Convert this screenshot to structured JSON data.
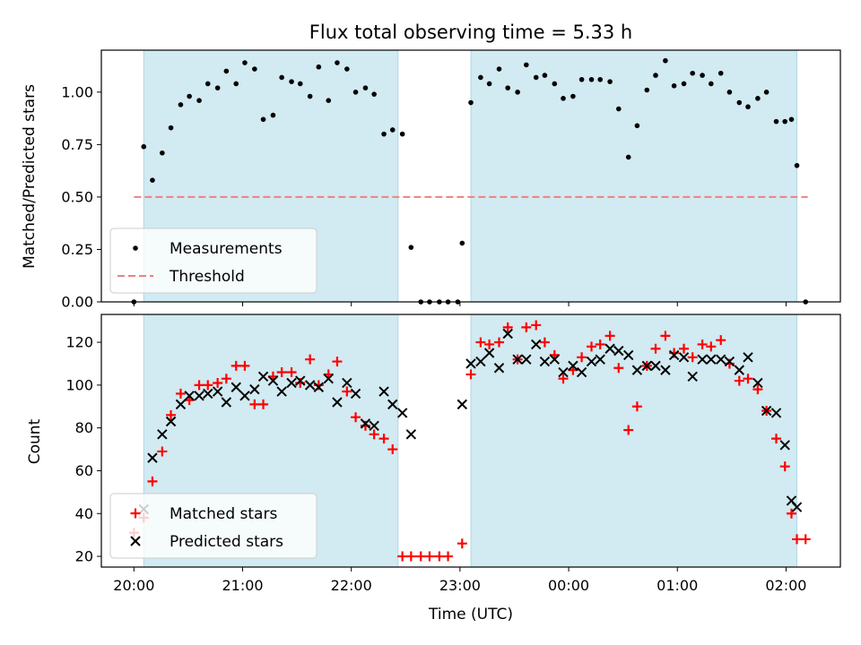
{
  "chart_data": {
    "title": "Flux total observing time = 5.33 h",
    "xlabel": "Time (UTC)",
    "x_unit": "hours UTC on a continuous clock (24 = 00:00 of the next day)",
    "xlim": [
      19.7,
      26.5
    ],
    "xticks": [
      {
        "value": 20,
        "label": "20:00"
      },
      {
        "value": 21,
        "label": "21:00"
      },
      {
        "value": 22,
        "label": "22:00"
      },
      {
        "value": 23,
        "label": "23:00"
      },
      {
        "value": 24,
        "label": "00:00"
      },
      {
        "value": 25,
        "label": "01:00"
      },
      {
        "value": 26,
        "label": "02:00"
      }
    ],
    "shaded_intervals": [
      [
        20.09,
        22.43
      ],
      [
        23.1,
        26.1
      ]
    ],
    "shade_color": "#add8e6",
    "panels": [
      {
        "type": "scatter",
        "ylabel": "Matched/Predicted stars",
        "ylim": [
          0,
          1.2
        ],
        "yticks": [
          "0.00",
          "0.25",
          "0.50",
          "0.75",
          "1.00"
        ],
        "ytick_values": [
          0,
          0.25,
          0.5,
          0.75,
          1.0
        ],
        "legend": {
          "placement": "lower-left",
          "entries": [
            "Measurements",
            "Threshold"
          ]
        },
        "series": [
          {
            "name": "Measurements",
            "marker": "dot",
            "color": "#000000",
            "points": [
              [
                20.0,
                0.0
              ],
              [
                20.09,
                0.74
              ],
              [
                20.17,
                0.58
              ],
              [
                20.26,
                0.71
              ],
              [
                20.34,
                0.83
              ],
              [
                20.43,
                0.94
              ],
              [
                20.51,
                0.98
              ],
              [
                20.6,
                0.96
              ],
              [
                20.68,
                1.04
              ],
              [
                20.77,
                1.02
              ],
              [
                20.85,
                1.1
              ],
              [
                20.94,
                1.04
              ],
              [
                21.02,
                1.14
              ],
              [
                21.11,
                1.11
              ],
              [
                21.19,
                0.87
              ],
              [
                21.28,
                0.89
              ],
              [
                21.36,
                1.07
              ],
              [
                21.45,
                1.05
              ],
              [
                21.53,
                1.04
              ],
              [
                21.62,
                0.98
              ],
              [
                21.7,
                1.12
              ],
              [
                21.79,
                0.96
              ],
              [
                21.87,
                1.14
              ],
              [
                21.96,
                1.11
              ],
              [
                22.04,
                1.0
              ],
              [
                22.13,
                1.02
              ],
              [
                22.21,
                0.99
              ],
              [
                22.3,
                0.8
              ],
              [
                22.38,
                0.82
              ],
              [
                22.47,
                0.8
              ],
              [
                22.55,
                0.26
              ],
              [
                22.64,
                0.0
              ],
              [
                22.72,
                0.0
              ],
              [
                22.81,
                0.0
              ],
              [
                22.89,
                0.0
              ],
              [
                22.98,
                0.0
              ],
              [
                23.02,
                0.28
              ],
              [
                23.1,
                0.95
              ],
              [
                23.19,
                1.07
              ],
              [
                23.27,
                1.04
              ],
              [
                23.36,
                1.11
              ],
              [
                23.44,
                1.02
              ],
              [
                23.53,
                1.0
              ],
              [
                23.61,
                1.13
              ],
              [
                23.7,
                1.07
              ],
              [
                23.78,
                1.08
              ],
              [
                23.87,
                1.04
              ],
              [
                23.95,
                0.97
              ],
              [
                24.04,
                0.98
              ],
              [
                24.12,
                1.06
              ],
              [
                24.21,
                1.06
              ],
              [
                24.29,
                1.06
              ],
              [
                24.38,
                1.05
              ],
              [
                24.46,
                0.92
              ],
              [
                24.55,
                0.69
              ],
              [
                24.63,
                0.84
              ],
              [
                24.72,
                1.01
              ],
              [
                24.8,
                1.08
              ],
              [
                24.89,
                1.15
              ],
              [
                24.97,
                1.03
              ],
              [
                25.06,
                1.04
              ],
              [
                25.14,
                1.09
              ],
              [
                25.23,
                1.08
              ],
              [
                25.31,
                1.04
              ],
              [
                25.4,
                1.09
              ],
              [
                25.48,
                1.0
              ],
              [
                25.57,
                0.95
              ],
              [
                25.65,
                0.93
              ],
              [
                25.74,
                0.97
              ],
              [
                25.82,
                1.0
              ],
              [
                25.91,
                0.86
              ],
              [
                25.99,
                0.86
              ],
              [
                26.05,
                0.87
              ],
              [
                26.1,
                0.65
              ],
              [
                26.18,
                0.0
              ]
            ]
          },
          {
            "name": "Threshold",
            "marker": "dashed-line",
            "color": "#f08080",
            "points": [
              [
                20.0,
                0.5
              ],
              [
                26.2,
                0.5
              ]
            ]
          }
        ]
      },
      {
        "type": "scatter",
        "ylabel": "Count",
        "ylim": [
          15,
          133
        ],
        "yticks": [
          "20",
          "40",
          "60",
          "80",
          "100",
          "120"
        ],
        "ytick_values": [
          20,
          40,
          60,
          80,
          100,
          120
        ],
        "legend": {
          "placement": "lower-left",
          "entries": [
            "Matched stars",
            "Predicted stars"
          ]
        },
        "series": [
          {
            "name": "Matched stars",
            "marker": "plus",
            "color": "#ff0000",
            "points": [
              [
                20.0,
                31
              ],
              [
                20.09,
                38
              ],
              [
                20.17,
                55
              ],
              [
                20.26,
                69
              ],
              [
                20.34,
                86
              ],
              [
                20.43,
                96
              ],
              [
                20.51,
                93
              ],
              [
                20.6,
                100
              ],
              [
                20.68,
                100
              ],
              [
                20.77,
                101
              ],
              [
                20.85,
                103
              ],
              [
                20.94,
                109
              ],
              [
                21.02,
                109
              ],
              [
                21.11,
                91
              ],
              [
                21.19,
                91
              ],
              [
                21.28,
                104
              ],
              [
                21.36,
                106
              ],
              [
                21.45,
                106
              ],
              [
                21.53,
                101
              ],
              [
                21.62,
                112
              ],
              [
                21.7,
                100
              ],
              [
                21.79,
                105
              ],
              [
                21.87,
                111
              ],
              [
                21.96,
                97
              ],
              [
                22.04,
                85
              ],
              [
                22.13,
                81
              ],
              [
                22.21,
                77
              ],
              [
                22.3,
                75
              ],
              [
                22.38,
                70
              ],
              [
                22.47,
                20
              ],
              [
                22.55,
                20
              ],
              [
                22.64,
                20
              ],
              [
                22.72,
                20
              ],
              [
                22.81,
                20
              ],
              [
                22.89,
                20
              ],
              [
                23.02,
                26
              ],
              [
                23.1,
                105
              ],
              [
                23.19,
                120
              ],
              [
                23.27,
                119
              ],
              [
                23.36,
                120
              ],
              [
                23.44,
                127
              ],
              [
                23.53,
                112
              ],
              [
                23.61,
                127
              ],
              [
                23.7,
                128
              ],
              [
                23.78,
                120
              ],
              [
                23.87,
                114
              ],
              [
                23.95,
                103
              ],
              [
                24.04,
                107
              ],
              [
                24.12,
                113
              ],
              [
                24.21,
                118
              ],
              [
                24.29,
                119
              ],
              [
                24.38,
                123
              ],
              [
                24.46,
                108
              ],
              [
                24.55,
                79
              ],
              [
                24.63,
                90
              ],
              [
                24.72,
                109
              ],
              [
                24.8,
                117
              ],
              [
                24.89,
                123
              ],
              [
                24.97,
                115
              ],
              [
                25.06,
                117
              ],
              [
                25.14,
                113
              ],
              [
                25.23,
                119
              ],
              [
                25.31,
                118
              ],
              [
                25.4,
                121
              ],
              [
                25.48,
                110
              ],
              [
                25.57,
                102
              ],
              [
                25.65,
                103
              ],
              [
                25.74,
                98
              ],
              [
                25.82,
                88
              ],
              [
                25.91,
                75
              ],
              [
                25.99,
                62
              ],
              [
                26.05,
                40
              ],
              [
                26.1,
                28
              ],
              [
                26.18,
                28
              ]
            ]
          },
          {
            "name": "Predicted stars",
            "marker": "cross",
            "color": "#000000",
            "points": [
              [
                20.09,
                42
              ],
              [
                20.17,
                66
              ],
              [
                20.26,
                77
              ],
              [
                20.34,
                83
              ],
              [
                20.43,
                91
              ],
              [
                20.51,
                95
              ],
              [
                20.6,
                95
              ],
              [
                20.68,
                96
              ],
              [
                20.77,
                97
              ],
              [
                20.85,
                92
              ],
              [
                20.94,
                99
              ],
              [
                21.02,
                95
              ],
              [
                21.11,
                98
              ],
              [
                21.19,
                104
              ],
              [
                21.28,
                102
              ],
              [
                21.36,
                97
              ],
              [
                21.45,
                101
              ],
              [
                21.53,
                102
              ],
              [
                21.62,
                100
              ],
              [
                21.7,
                99
              ],
              [
                21.79,
                103
              ],
              [
                21.87,
                92
              ],
              [
                21.96,
                101
              ],
              [
                22.04,
                96
              ],
              [
                22.13,
                82
              ],
              [
                22.21,
                81
              ],
              [
                22.3,
                97
              ],
              [
                22.38,
                91
              ],
              [
                22.47,
                87
              ],
              [
                22.55,
                77
              ],
              [
                23.02,
                91
              ],
              [
                23.1,
                110
              ],
              [
                23.19,
                111
              ],
              [
                23.27,
                115
              ],
              [
                23.36,
                108
              ],
              [
                23.44,
                124
              ],
              [
                23.53,
                112
              ],
              [
                23.61,
                112
              ],
              [
                23.7,
                119
              ],
              [
                23.78,
                111
              ],
              [
                23.87,
                112
              ],
              [
                23.95,
                106
              ],
              [
                24.04,
                109
              ],
              [
                24.12,
                106
              ],
              [
                24.21,
                111
              ],
              [
                24.29,
                112
              ],
              [
                24.38,
                117
              ],
              [
                24.46,
                116
              ],
              [
                24.55,
                114
              ],
              [
                24.63,
                107
              ],
              [
                24.72,
                109
              ],
              [
                24.8,
                109
              ],
              [
                24.89,
                107
              ],
              [
                24.97,
                114
              ],
              [
                25.06,
                113
              ],
              [
                25.14,
                104
              ],
              [
                25.23,
                112
              ],
              [
                25.31,
                112
              ],
              [
                25.4,
                112
              ],
              [
                25.48,
                111
              ],
              [
                25.57,
                107
              ],
              [
                25.65,
                113
              ],
              [
                25.74,
                101
              ],
              [
                25.82,
                88
              ],
              [
                25.91,
                87
              ],
              [
                25.99,
                72
              ],
              [
                26.05,
                46
              ],
              [
                26.1,
                43
              ]
            ]
          }
        ]
      }
    ]
  }
}
